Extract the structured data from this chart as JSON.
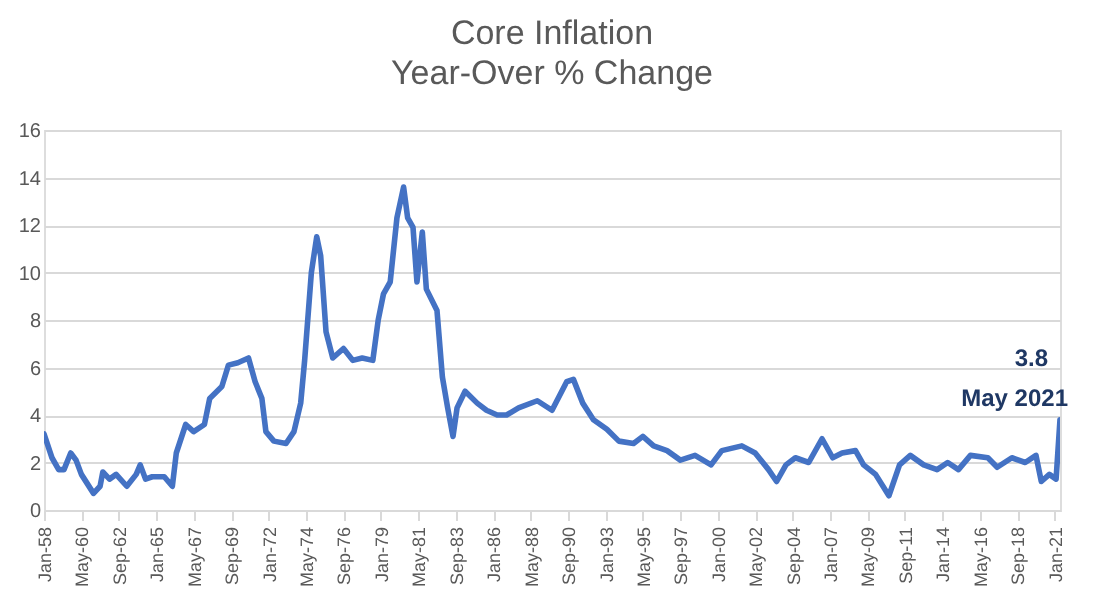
{
  "chart_data": {
    "type": "line",
    "title": "Core Inflation",
    "subtitle": "Year-Over % Change",
    "x": [
      "1958-01",
      "1958-07",
      "1958-12",
      "1959-04",
      "1959-09",
      "1960-01",
      "1960-05",
      "1961-02",
      "1961-07",
      "1961-09",
      "1962-02",
      "1962-07",
      "1963-03",
      "1963-10",
      "1964-01",
      "1964-05",
      "1964-10",
      "1965-07",
      "1966-01",
      "1966-04",
      "1966-11",
      "1967-05",
      "1968-01",
      "1968-05",
      "1969-02",
      "1969-07",
      "1970-02",
      "1970-10",
      "1971-03",
      "1971-08",
      "1971-11",
      "1972-05",
      "1973-02",
      "1973-08",
      "1974-01",
      "1974-04",
      "1974-09",
      "1975-01",
      "1975-04",
      "1975-08",
      "1976-01",
      "1976-09",
      "1977-04",
      "1977-11",
      "1978-07",
      "1978-11",
      "1979-03",
      "1979-08",
      "1980-01",
      "1980-06",
      "1980-09",
      "1981-01",
      "1981-04",
      "1981-08",
      "1981-11",
      "1982-07",
      "1982-11",
      "1983-03",
      "1983-07",
      "1983-10",
      "1984-04",
      "1985-01",
      "1985-08",
      "1986-04",
      "1986-11",
      "1987-08",
      "1988-10",
      "1989-09",
      "1990-08",
      "1991-01",
      "1991-08",
      "1992-04",
      "1993-02",
      "1993-11",
      "1994-10",
      "1995-05",
      "1996-01",
      "1996-11",
      "1997-09",
      "1998-08",
      "1999-08",
      "2000-04",
      "2001-07",
      "2002-05",
      "2003-03",
      "2003-09",
      "2004-04",
      "2004-11",
      "2005-09",
      "2006-07",
      "2007-03",
      "2007-10",
      "2008-08",
      "2009-02",
      "2009-11",
      "2010-09",
      "2011-05",
      "2012-01",
      "2012-11",
      "2013-09",
      "2014-05",
      "2015-01",
      "2015-10",
      "2016-11",
      "2017-06",
      "2018-05",
      "2019-03",
      "2019-11",
      "2020-03",
      "2020-09",
      "2021-02",
      "2021-05"
    ],
    "series": [
      {
        "color": "#4472c4",
        "values": [
          3.2,
          2.2,
          1.7,
          1.7,
          2.4,
          2.1,
          1.5,
          0.7,
          1.0,
          1.6,
          1.3,
          1.5,
          1.0,
          1.5,
          1.9,
          1.3,
          1.4,
          1.4,
          1.0,
          2.4,
          3.6,
          3.3,
          3.6,
          4.7,
          5.2,
          6.1,
          6.2,
          6.4,
          5.4,
          4.7,
          3.3,
          2.9,
          2.8,
          3.3,
          4.5,
          6.3,
          10.0,
          11.5,
          10.7,
          7.5,
          6.4,
          6.8,
          6.3,
          6.4,
          6.3,
          8.0,
          9.1,
          9.6,
          12.3,
          13.6,
          12.3,
          11.9,
          9.6,
          11.7,
          9.3,
          8.4,
          5.6,
          4.3,
          3.1,
          4.3,
          5.0,
          4.5,
          4.2,
          4.0,
          4.0,
          4.3,
          4.6,
          4.2,
          5.4,
          5.5,
          4.5,
          3.8,
          3.4,
          2.9,
          2.8,
          3.1,
          2.7,
          2.5,
          2.1,
          2.3,
          1.9,
          2.5,
          2.7,
          2.4,
          1.7,
          1.2,
          1.9,
          2.2,
          2.0,
          3.0,
          2.2,
          2.4,
          2.5,
          1.9,
          1.5,
          0.6,
          1.9,
          2.3,
          1.9,
          1.7,
          2.0,
          1.7,
          2.3,
          2.2,
          1.8,
          2.2,
          2.0,
          2.3,
          1.2,
          1.5,
          1.3,
          3.8
        ]
      }
    ],
    "xlim": [
      "1958-01",
      "2021-05"
    ],
    "xticks": [
      {
        "value": "1958-01",
        "label": "Jan-58"
      },
      {
        "value": "1960-05",
        "label": "May-60"
      },
      {
        "value": "1962-09",
        "label": "Sep-62"
      },
      {
        "value": "1965-01",
        "label": "Jan-65"
      },
      {
        "value": "1967-05",
        "label": "May-67"
      },
      {
        "value": "1969-09",
        "label": "Sep-69"
      },
      {
        "value": "1972-01",
        "label": "Jan-72"
      },
      {
        "value": "1974-05",
        "label": "May-74"
      },
      {
        "value": "1976-09",
        "label": "Sep-76"
      },
      {
        "value": "1979-01",
        "label": "Jan-79"
      },
      {
        "value": "1981-05",
        "label": "May-81"
      },
      {
        "value": "1983-09",
        "label": "Sep-83"
      },
      {
        "value": "1986-01",
        "label": "Jan-86"
      },
      {
        "value": "1988-05",
        "label": "May-88"
      },
      {
        "value": "1990-09",
        "label": "Sep-90"
      },
      {
        "value": "1993-01",
        "label": "Jan-93"
      },
      {
        "value": "1995-05",
        "label": "May-95"
      },
      {
        "value": "1997-09",
        "label": "Sep-97"
      },
      {
        "value": "2000-01",
        "label": "Jan-00"
      },
      {
        "value": "2002-05",
        "label": "May-02"
      },
      {
        "value": "2004-09",
        "label": "Sep-04"
      },
      {
        "value": "2007-01",
        "label": "Jan-07"
      },
      {
        "value": "2009-05",
        "label": "May-09"
      },
      {
        "value": "2011-09",
        "label": "Sep-11"
      },
      {
        "value": "2014-01",
        "label": "Jan-14"
      },
      {
        "value": "2016-05",
        "label": "May-16"
      },
      {
        "value": "2018-09",
        "label": "Sep-18"
      },
      {
        "value": "2021-01",
        "label": "Jan-21"
      }
    ],
    "ylim": [
      0,
      16
    ],
    "yticks": [
      0,
      2,
      4,
      6,
      8,
      10,
      12,
      14,
      16
    ],
    "grid": "y",
    "marker": "none",
    "line_style": "solid",
    "annotations": [
      {
        "text": "3.8",
        "x": "2021-05",
        "y": 3.8
      },
      {
        "text": "May 2021",
        "x": "2021-05",
        "y": 3.8
      }
    ]
  }
}
